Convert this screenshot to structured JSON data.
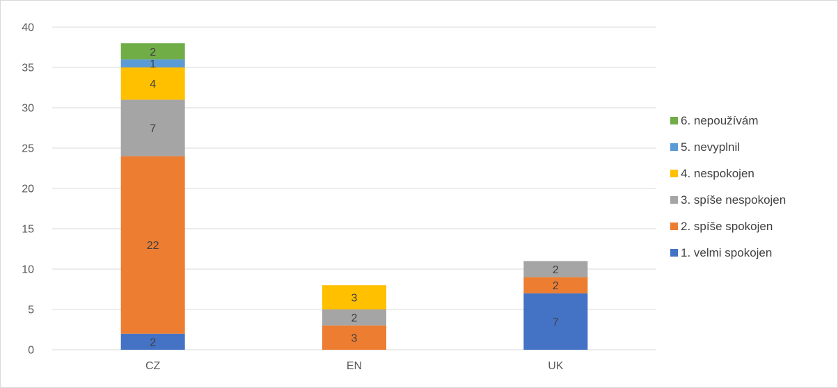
{
  "chart_data": {
    "type": "bar",
    "stacked": true,
    "categories": [
      "CZ",
      "EN",
      "UK"
    ],
    "series": [
      {
        "name": "1. velmi spokojen",
        "color": "#4472c4",
        "values": [
          2,
          0,
          7
        ]
      },
      {
        "name": "2. spíše spokojen",
        "color": "#ed7d31",
        "values": [
          22,
          3,
          2
        ]
      },
      {
        "name": "3. spíše nespokojen",
        "color": "#a5a5a5",
        "values": [
          7,
          2,
          2
        ]
      },
      {
        "name": "4. nespokojen",
        "color": "#ffc000",
        "values": [
          4,
          3,
          0
        ]
      },
      {
        "name": "5. nevyplnil",
        "color": "#5b9bd5",
        "values": [
          1,
          0,
          0
        ]
      },
      {
        "name": "6. nepoužívám",
        "color": "#70ad47",
        "values": [
          2,
          0,
          0
        ]
      }
    ],
    "title": "",
    "xlabel": "",
    "ylabel": "",
    "ylim": [
      0,
      40
    ],
    "yticks": [
      0,
      5,
      10,
      15,
      20,
      25,
      30,
      35,
      40
    ],
    "grid": true,
    "legend_position": "right"
  }
}
